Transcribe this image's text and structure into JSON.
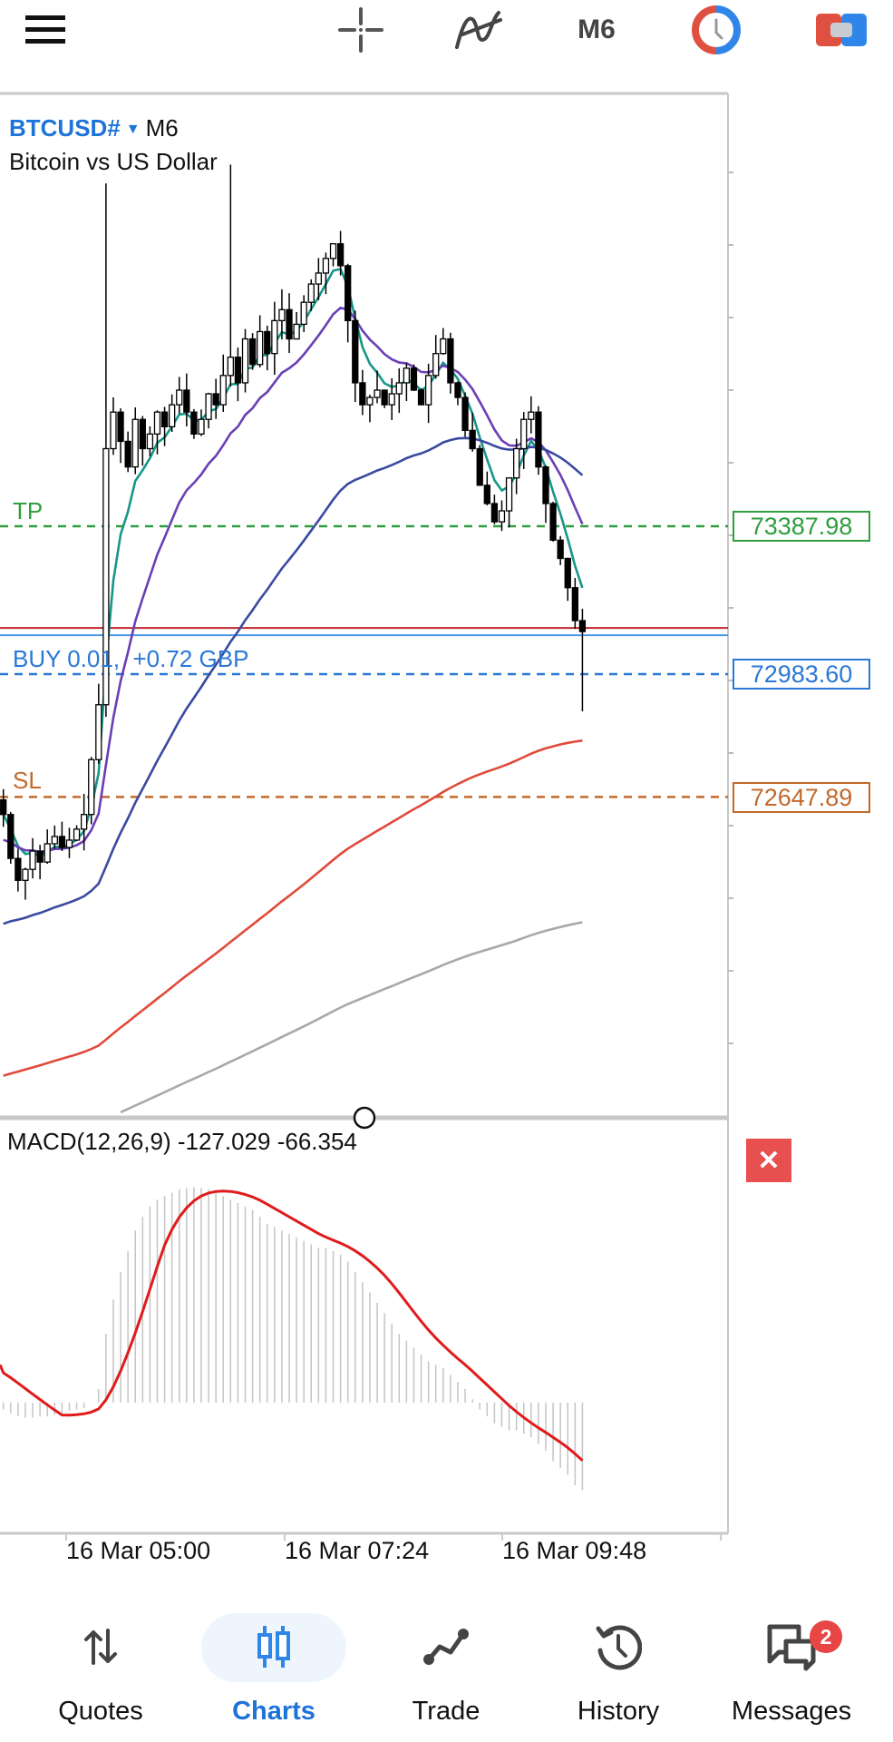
{
  "toolbar": {
    "menu_icon": "hamburger-menu-icon",
    "crosshair_icon": "crosshair-icon",
    "indicators_icon": "indicator-f-icon",
    "timeframe": "M6",
    "clock_icon": "trading-session-clock-icon",
    "order_icon": "one-click-trading-icon"
  },
  "chart": {
    "symbol": "BTCUSD#",
    "timeframe": "M6",
    "description": "Bitcoin vs US Dollar",
    "levels": {
      "tp": {
        "label": "TP",
        "price": "73387.98",
        "color": "#2e9e3e"
      },
      "position": {
        "label": "BUY 0.01,  +0.72 GBP",
        "price": "72983.60",
        "color": "#2a78d6"
      },
      "sl": {
        "label": "SL",
        "price": "72647.89",
        "color": "#c2692a"
      },
      "bid_line_color": "#c0262b",
      "ask_line_color": "#4a98e8"
    },
    "macd": {
      "label": "MACD(12,26,9) -127.029 -66.354",
      "close_icon": "close-icon"
    },
    "time_labels": [
      "16 Mar 05:00",
      "16 Mar 07:24",
      "16 Mar 09:48"
    ]
  },
  "chart_data": {
    "type": "candlestick",
    "price_scale": {
      "ref_price": 73387.98,
      "price_per_unit": 2.48
    },
    "closes": [
      72600,
      72480,
      72420,
      72450,
      72500,
      72470,
      72520,
      72540,
      72510,
      72530,
      72560,
      72600,
      72750,
      72900,
      73600,
      73700,
      73620,
      73550,
      73680,
      73600,
      73640,
      73700,
      73660,
      73720,
      73760,
      73700,
      73640,
      73680,
      73750,
      73720,
      73800,
      73850,
      73780,
      73900,
      73830,
      73920,
      73860,
      73950,
      73980,
      73900,
      73940,
      74000,
      74050,
      74080,
      74120,
      74160,
      74100,
      73950,
      73780,
      73720,
      73740,
      73760,
      73720,
      73750,
      73780,
      73820,
      73760,
      73720,
      73800,
      73860,
      73900,
      73780,
      73740,
      73650,
      73600,
      73500,
      73450,
      73400,
      73430,
      73520,
      73600,
      73680,
      73700,
      73550,
      73450,
      73350,
      73300,
      73220,
      73130,
      73100
    ],
    "last_low": 72882,
    "moving_averages": [
      {
        "period": 5,
        "initial": 72600,
        "color": "#17968a"
      },
      {
        "period": 14,
        "initial": 72520,
        "color": "#6a3fb5"
      },
      {
        "period": 50,
        "initial": 72289,
        "color": "#3a4aa0"
      },
      {
        "period": 200,
        "initial": 71879,
        "color": "#e04a3a"
      },
      {
        "period": 400,
        "initial": 71700,
        "color": "#a8a8a8"
      }
    ],
    "macd_histogram": [
      -10,
      -15,
      -20,
      -22,
      -22,
      -20,
      -20,
      -18,
      -15,
      -12,
      -10,
      -8,
      0,
      20,
      100,
      150,
      190,
      220,
      250,
      270,
      285,
      295,
      300,
      305,
      310,
      312,
      313,
      312,
      310,
      305,
      300,
      295,
      290,
      285,
      280,
      270,
      260,
      255,
      250,
      245,
      240,
      235,
      230,
      225,
      225,
      220,
      215,
      205,
      190,
      175,
      160,
      145,
      130,
      115,
      100,
      90,
      80,
      70,
      60,
      55,
      50,
      40,
      30,
      20,
      5,
      -10,
      -20,
      -30,
      -35,
      -40,
      -40,
      -45,
      -50,
      -60,
      -70,
      -85,
      -95,
      -105,
      -120,
      -127
    ],
    "macd_signal_period": 9,
    "macd_signal_color": "#e01b1b",
    "macd_ylim": [
      -190,
      410
    ],
    "x_tick_labels": [
      "16 Mar 05:00",
      "16 Mar 07:24",
      "16 Mar 09:48"
    ]
  },
  "nav": {
    "items": [
      {
        "label": "Quotes",
        "icon": "quotes-arrows-icon"
      },
      {
        "label": "Charts",
        "icon": "candlestick-icon",
        "active": true
      },
      {
        "label": "Trade",
        "icon": "trade-line-icon"
      },
      {
        "label": "History",
        "icon": "history-icon"
      },
      {
        "label": "Messages",
        "icon": "messages-icon",
        "badge": "2"
      }
    ]
  }
}
